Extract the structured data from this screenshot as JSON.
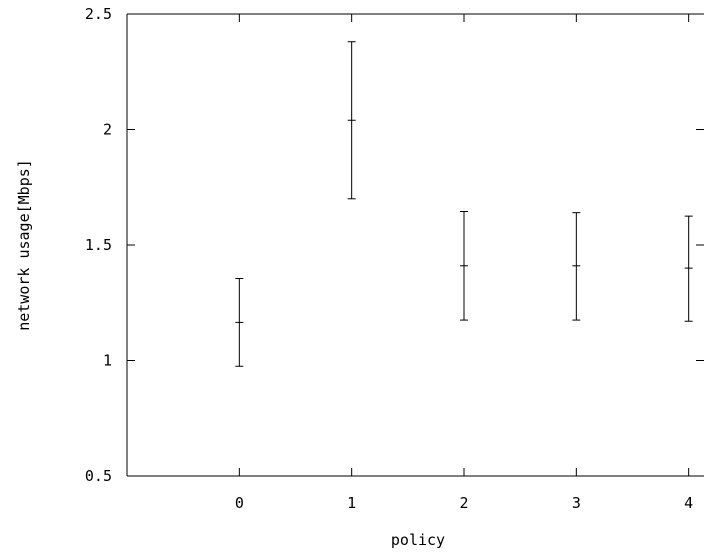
{
  "chart_data": {
    "type": "scatter",
    "title": "",
    "xlabel": "policy",
    "ylabel": "network usage[Mbps]",
    "xlim": [
      -1,
      5
    ],
    "ylim": [
      0.5,
      2.5
    ],
    "x_ticks": [
      "0",
      "1",
      "2",
      "3",
      "4"
    ],
    "y_ticks": [
      "0.5",
      "1",
      "1.5",
      "2",
      "2.5"
    ],
    "grid": false,
    "legend": "none",
    "series": [
      {
        "x": [
          0,
          1,
          2,
          3,
          4
        ],
        "mean": [
          1.165,
          2.04,
          1.41,
          1.41,
          1.4
        ],
        "lower": [
          0.975,
          1.7,
          1.175,
          1.175,
          1.17
        ],
        "upper": [
          1.355,
          2.38,
          1.645,
          1.64,
          1.625
        ]
      }
    ]
  }
}
